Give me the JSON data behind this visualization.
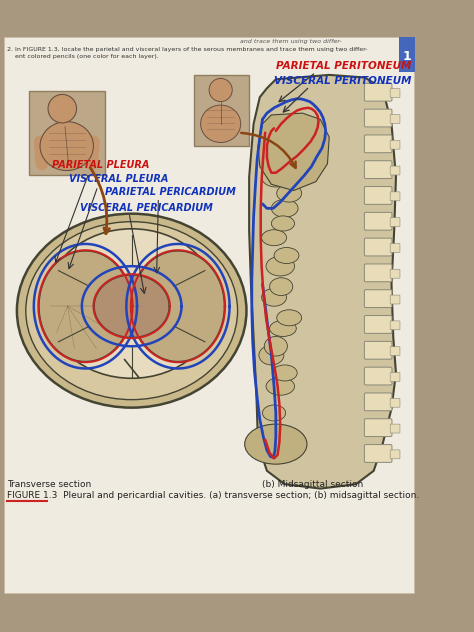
{
  "bg_color": "#a89880",
  "page_bg": "#f0ebe0",
  "header_strip": "#e8e0d0",
  "header_text1": "and trace them using two differ-",
  "question_text": "2. In FIGURE 1.3, locate the parietal and visceral layers of the serous membranes and trace them using two differ-",
  "question_text2": "    ent colored pencils (one color for each layer).",
  "page_num": "1",
  "page_tab_color": "#4466bb",
  "labels_left": [
    "PARIETAL PLEURA",
    "VISCERAL PLEURA",
    "PARIETAL PERICARDIUM",
    "VISCERAL PERICARDIUM"
  ],
  "labels_right": [
    "PARIETAL PERITONEUM",
    "VISCERAL PERITONEUM"
  ],
  "bottom_left_label": "Transverse section",
  "bottom_right_label": "(b) Midsagittal section",
  "figure_caption": "FIGURE 1.3  Pleural and pericardial cavities. (a) transverse section; (b) midsagittal section.",
  "red_color": "#cc2222",
  "blue_color": "#2244bb",
  "label_red": "#cc1111",
  "label_blue": "#1133bb",
  "dark_color": "#333322",
  "body_tan": "#c8aa80",
  "body_light": "#ddd0b0",
  "organ_brown": "#b89060",
  "spine_cream": "#e8ddb8",
  "line_dark": "#444433",
  "photo_skin": "#c4956a",
  "photo_dark": "#6a5040"
}
